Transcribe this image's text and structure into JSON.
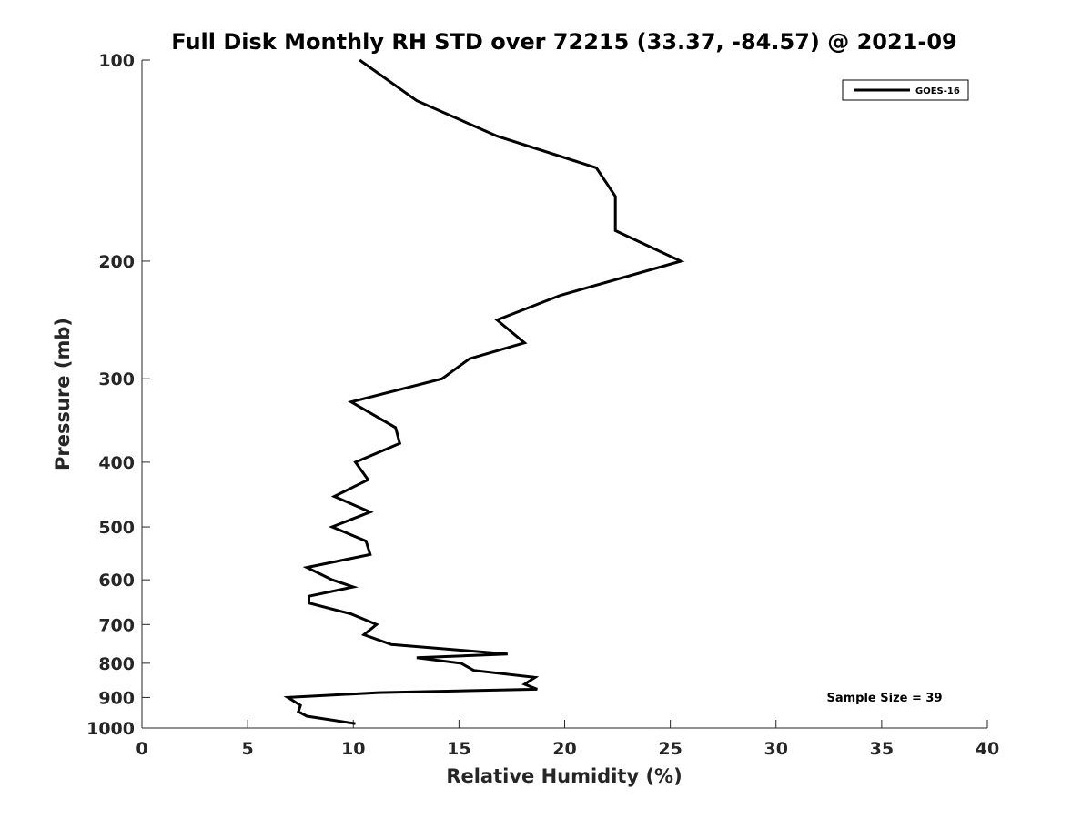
{
  "chart_data": {
    "type": "line",
    "title": "Full Disk Monthly RH STD over 72215 (33.37, -84.57) @ 2021-09",
    "xlabel": "Relative Humidity (%)",
    "ylabel": "Pressure (mb)",
    "xlim": [
      0,
      40
    ],
    "ylim": [
      100,
      1000
    ],
    "y_scale": "log",
    "y_reversed": true,
    "x_ticks": [
      "0",
      "5",
      "10",
      "15",
      "20",
      "25",
      "30",
      "35",
      "40"
    ],
    "y_ticks": [
      "100",
      "200",
      "300",
      "400",
      "500",
      "600",
      "700",
      "800",
      "900",
      "1000"
    ],
    "grid": false,
    "legend_position": "top-right",
    "series": [
      {
        "name": "GOES-16",
        "color": "#000000",
        "x": [
          10.3,
          13.0,
          16.8,
          21.5,
          22.4,
          22.4,
          25.5,
          19.8,
          16.8,
          18.1,
          15.5,
          14.2,
          9.9,
          12.0,
          12.2,
          10.1,
          10.7,
          9.1,
          10.8,
          9.0,
          10.6,
          10.8,
          7.8,
          9.0,
          10.0,
          7.9,
          7.9,
          9.9,
          11.1,
          10.5,
          11.8,
          17.3,
          13.0,
          15.1,
          15.7,
          18.6,
          18.1,
          18.7,
          11.2,
          6.9,
          7.5,
          7.4,
          7.8,
          10.1
        ],
        "y": [
          100,
          115,
          130,
          145,
          160,
          180,
          200,
          225,
          245,
          265,
          280,
          300,
          325,
          355,
          375,
          400,
          425,
          450,
          475,
          500,
          525,
          550,
          575,
          600,
          615,
          635,
          650,
          675,
          700,
          725,
          750,
          775,
          785,
          800,
          820,
          840,
          860,
          875,
          885,
          900,
          925,
          945,
          960,
          985
        ]
      }
    ],
    "annotations": [
      "Sample Size = 39"
    ]
  }
}
